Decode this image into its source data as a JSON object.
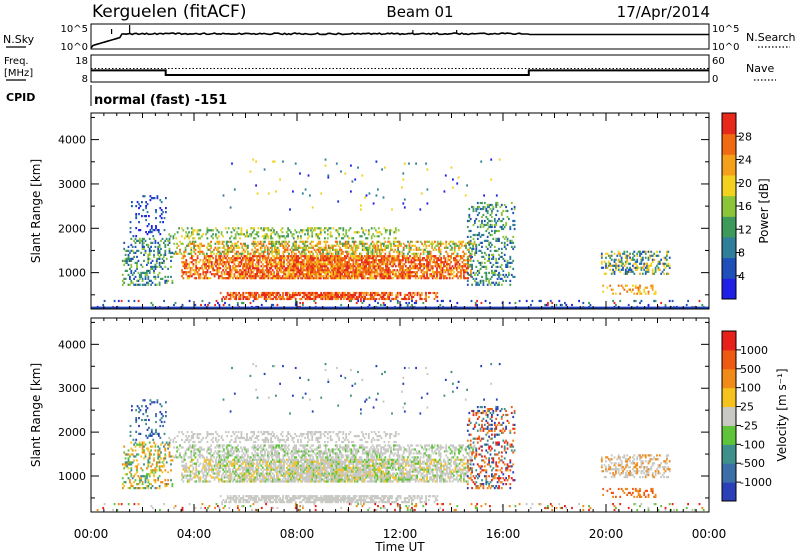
{
  "header": {
    "station": "Kerguelen (fitACF)",
    "beam": "Beam 01",
    "date": "17/Apr/2014"
  },
  "summary_panels": {
    "nsky": {
      "left_label": "N.Sky",
      "right_label": "N.Search",
      "left_ticks": [
        "10^5",
        "10^0"
      ],
      "right_ticks": [
        "10^5",
        "10^0"
      ]
    },
    "freq": {
      "left_label_1": "Freq.",
      "left_label_2": "[MHz]",
      "right_label": "Nave",
      "left_ticks": [
        "18",
        "8"
      ],
      "right_ticks": [
        "60",
        "0"
      ],
      "freq_profile_mhz": [
        [
          0.0,
          12.3
        ],
        [
          2.9,
          12.3
        ],
        [
          2.9,
          10.6
        ],
        [
          17.0,
          10.6
        ],
        [
          17.0,
          12.3
        ],
        [
          24.0,
          12.3
        ]
      ],
      "nave_level": 30
    },
    "cpid": {
      "label": "CPID",
      "value": "normal (fast) -151"
    }
  },
  "chart_data": [
    {
      "type": "heatmap",
      "name": "power",
      "ylabel": "Slant Range [km]",
      "ylim": [
        180,
        4600
      ],
      "yticks": [
        "1000",
        "2000",
        "3000",
        "4000"
      ],
      "xlim": [
        0,
        24
      ],
      "colorbar": {
        "label": "Power [dB]",
        "ticks": [
          "4",
          "8",
          "12",
          "16",
          "20",
          "24",
          "28"
        ],
        "range": [
          0,
          32
        ],
        "colors": [
          "#1f1fe6",
          "#1f4fb8",
          "#2f7f9a",
          "#3e9a5a",
          "#8cc43a",
          "#f2d21e",
          "#f5a01a",
          "#f06a12",
          "#e8281a"
        ]
      }
    },
    {
      "type": "heatmap",
      "name": "velocity",
      "ylabel": "Slant Range [km]",
      "ylim": [
        180,
        4600
      ],
      "yticks": [
        "1000",
        "2000",
        "3000",
        "4000"
      ],
      "xlim": [
        0,
        24
      ],
      "xlabel": "Time UT",
      "xticks": [
        "00:00",
        "04:00",
        "08:00",
        "12:00",
        "16:00",
        "20:00",
        "00:00"
      ],
      "colorbar": {
        "label": "Velocity [m s⁻¹]",
        "ticks": [
          "1000",
          "500",
          "100",
          "25",
          "-25",
          "-100",
          "-500",
          "-1000"
        ],
        "colors": [
          "#2a3fb8",
          "#3c6fa8",
          "#3f8f8a",
          "#5fc43a",
          "#c8c8c4",
          "#f5c21e",
          "#f08a18",
          "#ee5a14",
          "#e8201a"
        ]
      }
    }
  ]
}
